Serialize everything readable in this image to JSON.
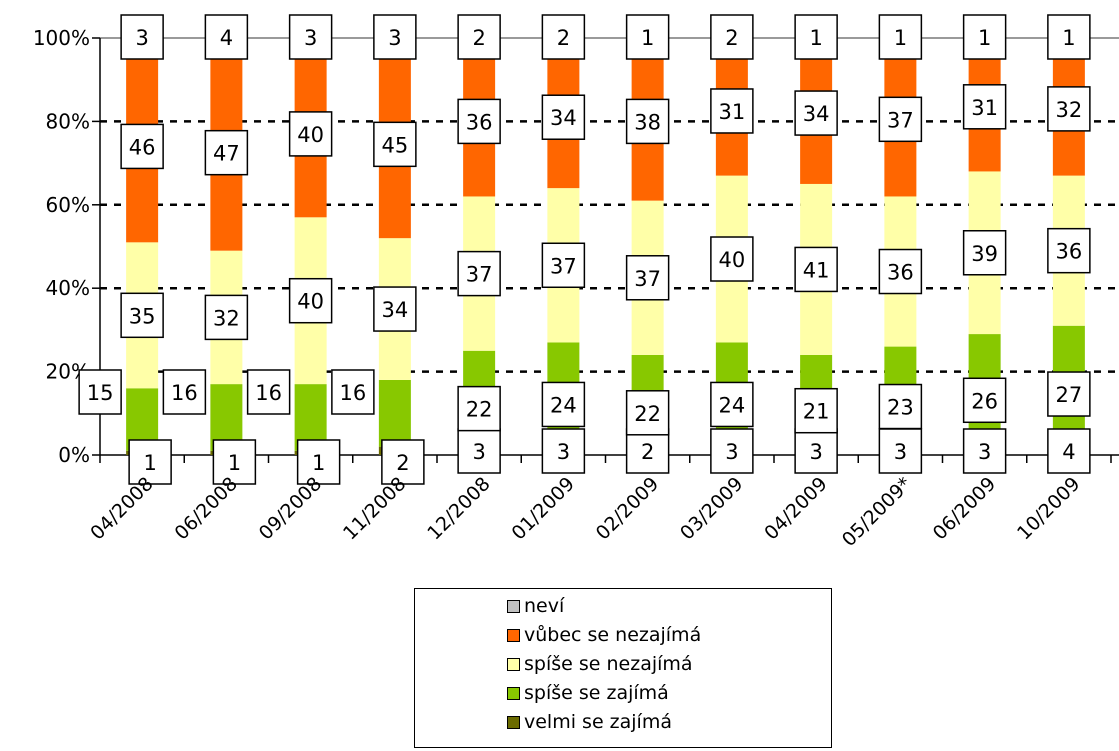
{
  "chart_data": {
    "type": "bar",
    "stacked": true,
    "percent": true,
    "categories": [
      "04/2008",
      "06/2008",
      "09/2008",
      "11/2008",
      "12/2008",
      "01/2009",
      "02/2009",
      "03/2009",
      "04/2009",
      "05/2009*",
      "06/2009",
      "10/2009"
    ],
    "series": [
      {
        "name": "velmi se zajímá",
        "color": "#6b6b00",
        "values": [
          1,
          1,
          1,
          2,
          3,
          3,
          2,
          3,
          3,
          3,
          3,
          4
        ]
      },
      {
        "name": "spíše se zajímá",
        "color": "#88c800",
        "values": [
          15,
          16,
          16,
          16,
          22,
          24,
          22,
          24,
          21,
          23,
          26,
          27
        ]
      },
      {
        "name": "spíše se nezajímá",
        "color": "#ffffa8",
        "values": [
          35,
          32,
          40,
          34,
          37,
          37,
          37,
          40,
          41,
          36,
          39,
          36
        ]
      },
      {
        "name": "vůbec se nezajímá",
        "color": "#ff6600",
        "values": [
          46,
          47,
          40,
          45,
          36,
          34,
          38,
          31,
          34,
          37,
          31,
          32
        ]
      },
      {
        "name": "neví",
        "color": "#c0c0c0",
        "values": [
          3,
          4,
          3,
          3,
          2,
          2,
          1,
          2,
          1,
          1,
          1,
          1
        ]
      }
    ],
    "yticks": [
      "0%",
      "20%",
      "40%",
      "60%",
      "80%",
      "100%"
    ],
    "ylim": [
      0,
      100
    ],
    "grid": true,
    "legend": "bottom"
  },
  "legend_items": [
    {
      "label": "neví",
      "color": "#c0c0c0"
    },
    {
      "label": "vůbec se nezajímá",
      "color": "#ff6600"
    },
    {
      "label": "spíše se nezajímá",
      "color": "#ffffa8"
    },
    {
      "label": "spíše se zajímá",
      "color": "#88c800"
    },
    {
      "label": "velmi se zajímá",
      "color": "#6b6b00"
    }
  ]
}
